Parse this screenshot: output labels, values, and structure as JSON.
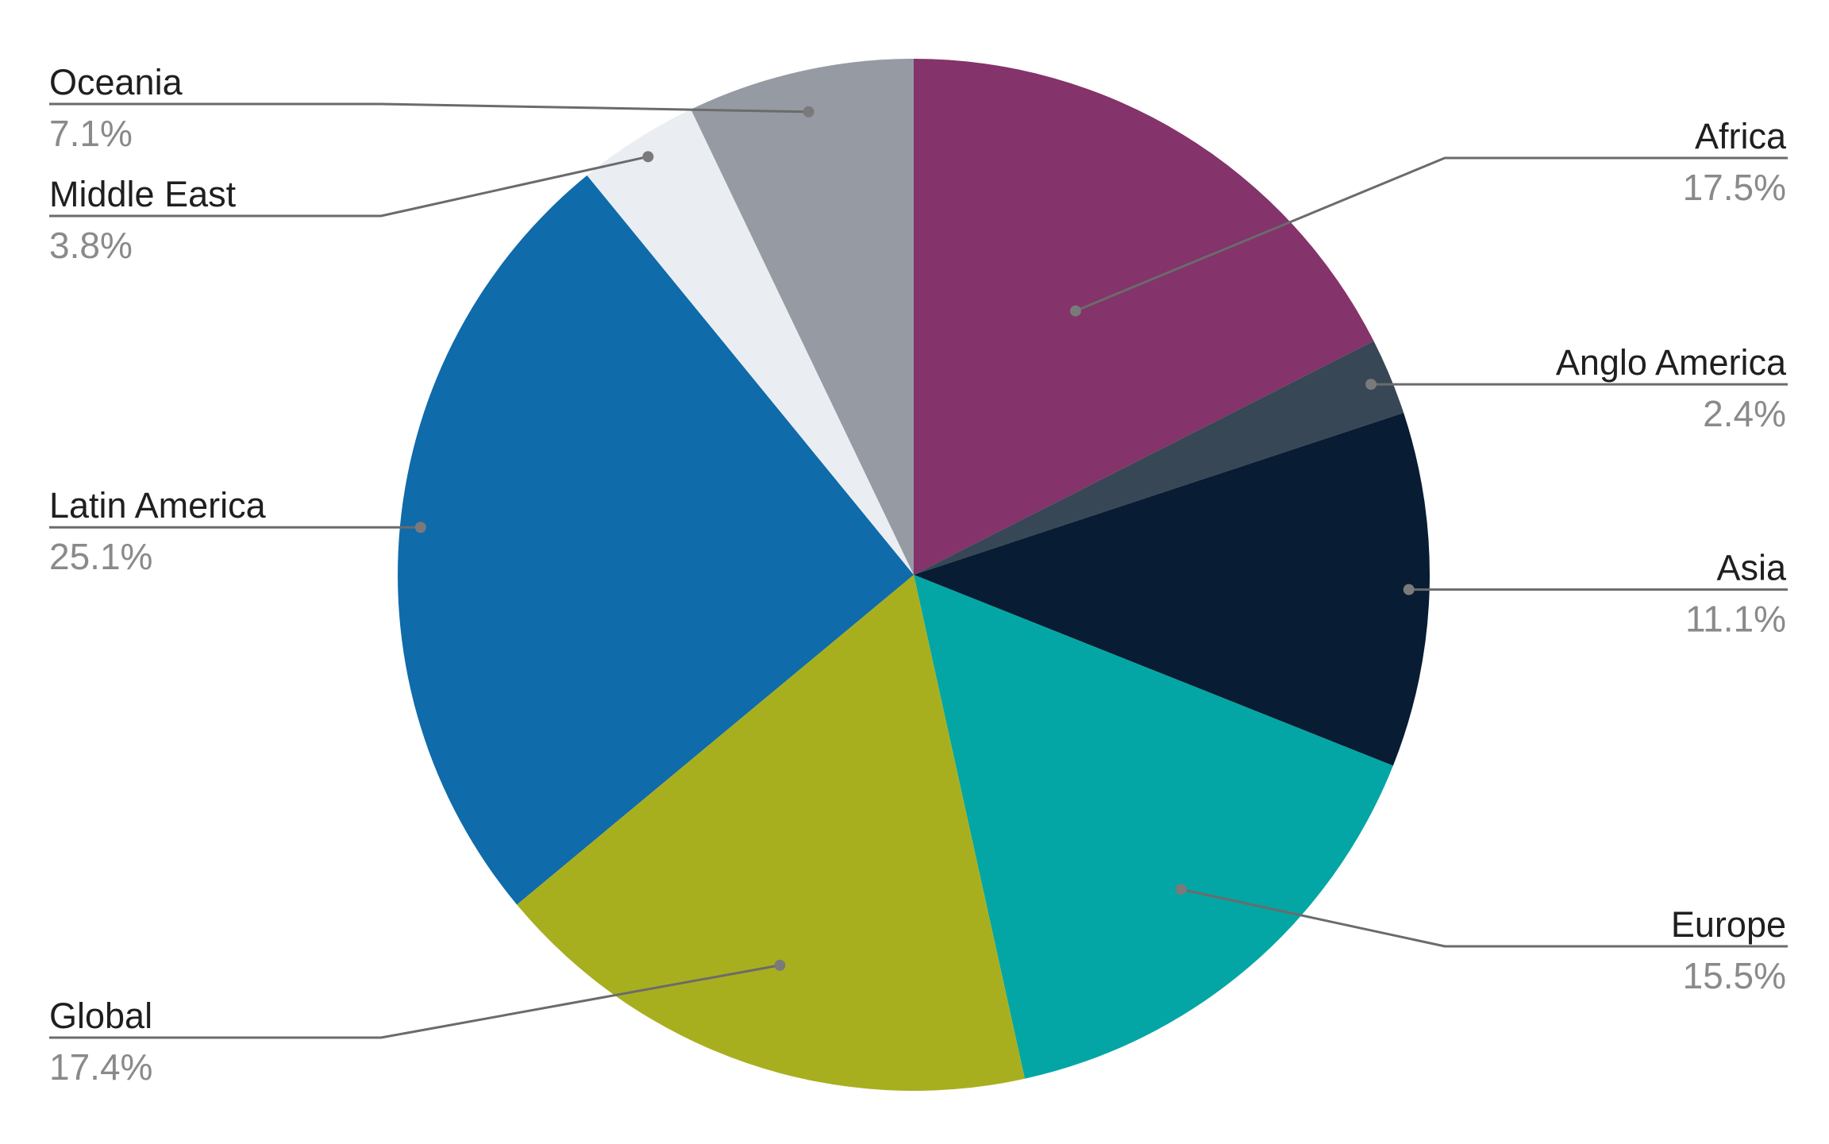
{
  "chart_data": {
    "type": "pie",
    "title": "",
    "start_angle_deg": 0,
    "direction": "clockwise",
    "slices": [
      {
        "label": "Africa",
        "value": 17.5,
        "display": "17.5%",
        "color": "#84336B"
      },
      {
        "label": "Anglo America",
        "value": 2.4,
        "display": "2.4%",
        "color": "#374755"
      },
      {
        "label": "Asia",
        "value": 11.1,
        "display": "11.1%",
        "color": "#081C34"
      },
      {
        "label": "Europe",
        "value": 15.5,
        "display": "15.5%",
        "color": "#03A6A4"
      },
      {
        "label": "Global",
        "value": 17.4,
        "display": "17.4%",
        "color": "#A8AF1F"
      },
      {
        "label": "Latin America",
        "value": 25.1,
        "display": "25.1%",
        "color": "#0F6BAA"
      },
      {
        "label": "Middle East",
        "value": 3.8,
        "display": "3.8%",
        "color": "#EAEEF2"
      },
      {
        "label": "Oceania",
        "value": 7.1,
        "display": "7.1%",
        "color": "#969AA2"
      }
    ],
    "leader_line_color": "#6b6b6b",
    "leader_dot_color": "#7a7a7a"
  }
}
